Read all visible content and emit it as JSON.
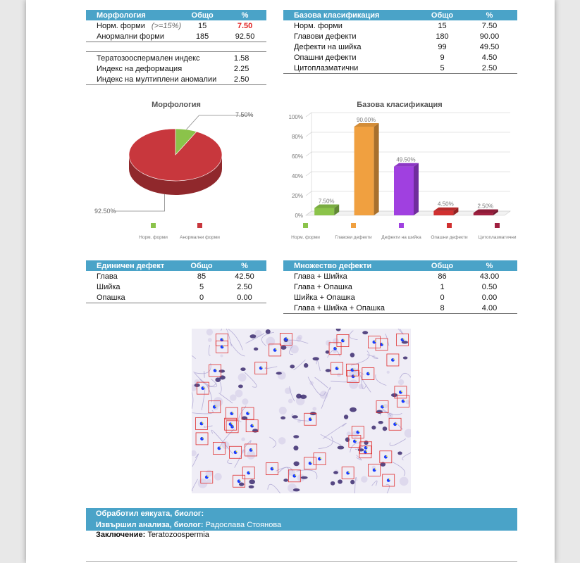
{
  "morph_table": {
    "headers": [
      "Морфология",
      "Общо",
      "%"
    ],
    "rows": [
      {
        "label": "Норм. форми",
        "note": "(>=15%)",
        "total": "15",
        "pct": "7.50"
      },
      {
        "label": "Анормални форми",
        "total": "185",
        "pct": "92.50"
      }
    ]
  },
  "index_table": {
    "rows": [
      {
        "label": "Тератозооспермален индекс",
        "value": "1.58"
      },
      {
        "label": "Индекс на деформация",
        "value": "2.25"
      },
      {
        "label": "Индекс на мултиплени аномалии",
        "value": "2.50"
      }
    ]
  },
  "base_table": {
    "headers": [
      "Базова класификация",
      "Общо",
      "%"
    ],
    "rows": [
      {
        "label": "Норм. форми",
        "total": "15",
        "pct": "7.50"
      },
      {
        "label": "Главови дефекти",
        "total": "180",
        "pct": "90.00"
      },
      {
        "label": "Дефекти на шийка",
        "total": "99",
        "pct": "49.50"
      },
      {
        "label": "Опашни дефекти",
        "total": "9",
        "pct": "4.50"
      },
      {
        "label": "Цитоплазматични",
        "total": "5",
        "pct": "2.50"
      }
    ]
  },
  "single_table": {
    "headers": [
      "Единичен дефект",
      "Общо",
      "%"
    ],
    "rows": [
      {
        "label": "Глава",
        "total": "85",
        "pct": "42.50"
      },
      {
        "label": "Шийка",
        "total": "5",
        "pct": "2.50"
      },
      {
        "label": "Опашка",
        "total": "0",
        "pct": "0.00"
      }
    ]
  },
  "multi_table": {
    "headers": [
      "Множество дефекти",
      "Общо",
      "%"
    ],
    "rows": [
      {
        "label": "Глава + Шийка",
        "total": "86",
        "pct": "43.00"
      },
      {
        "label": "Глава + Опашка",
        "total": "1",
        "pct": "0.50"
      },
      {
        "label": "Шийка + Опашка",
        "total": "0",
        "pct": "0.00"
      },
      {
        "label": "Глава + Шийка + Опашка",
        "total": "8",
        "pct": "4.00"
      }
    ]
  },
  "chart_data": [
    {
      "type": "pie",
      "title": "Морфология",
      "categories": [
        "Норм. форми",
        "Анормални форми"
      ],
      "values": [
        7.5,
        92.5
      ],
      "labels": [
        "7.50%",
        "92.50%"
      ],
      "colors": [
        "#8bc34a",
        "#c8373d"
      ],
      "legend": "bottom"
    },
    {
      "type": "bar",
      "title": "Базова класификация",
      "categories": [
        "Норм. форми",
        "Главови дефекти",
        "Дефекти на шийка",
        "Опашни дефекти",
        "Цитоплазматични"
      ],
      "values": [
        7.5,
        90.0,
        49.5,
        4.5,
        2.5
      ],
      "labels": [
        "7.50%",
        "90.00%",
        "49.50%",
        "4.50%",
        "2.50%"
      ],
      "colors": [
        "#8bc34a",
        "#f0a040",
        "#a040e0",
        "#d03030",
        "#a02040"
      ],
      "yticks": [
        "0%",
        "20%",
        "40%",
        "60%",
        "80%",
        "100%"
      ],
      "ylim": [
        0,
        100
      ],
      "grid": true,
      "legend": "bottom"
    }
  ],
  "footer": {
    "processed_label": "Обработил еякуата, биолог:",
    "performed_label": "Извършил анализа, биолог:",
    "performed_name": "Радослава Стоянова",
    "conclusion_label": "Заключение:",
    "conclusion_value": "Teratozoospermia"
  }
}
